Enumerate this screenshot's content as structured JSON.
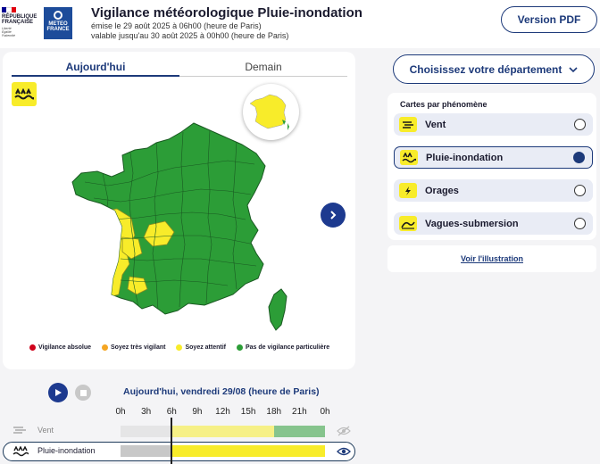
{
  "header": {
    "republic_lines": [
      "RÉPUBLIQUE",
      "FRANÇAISE"
    ],
    "motto_lines": [
      "Liberté",
      "Égalité",
      "Fraternité"
    ],
    "meteo_lines": [
      "METEO",
      "FRANCE"
    ],
    "title": "Vigilance météorologique Pluie-inondation",
    "issued": "émise le 29 août 2025 à 06h00 (heure de Paris)",
    "valid": "valable jusqu'au 30 août 2025 à 00h00 (heure de Paris)",
    "pdf_button": "Version PDF",
    "colors": {
      "flag_blue": "#000091",
      "flag_red": "#e1000f",
      "meteo_blue": "#1d4c9a"
    }
  },
  "map": {
    "tabs": [
      {
        "label": "Aujourd'hui",
        "active": true
      },
      {
        "label": "Demain",
        "active": false
      }
    ],
    "colors": {
      "green": "#2c9d37",
      "yellow": "#f8ec2a",
      "orange": "#f5a623",
      "red": "#d0021b"
    },
    "legend": [
      {
        "label": "Vigilance absolue",
        "color": "#d0021b"
      },
      {
        "label": "Soyez très vigilant",
        "color": "#f5a623"
      },
      {
        "label": "Soyez attentif",
        "color": "#f8ec2a"
      },
      {
        "label": "Pas de vigilance particulière",
        "color": "#2c9d37"
      }
    ]
  },
  "sidebar": {
    "department_button": "Choisissez votre département",
    "phenomena_label": "Cartes par phénomène",
    "phenomena": [
      {
        "label": "Vent",
        "icon": "wind-icon",
        "selected": false
      },
      {
        "label": "Pluie-inondation",
        "icon": "rain-flood-icon",
        "selected": true
      },
      {
        "label": "Orages",
        "icon": "storm-icon",
        "selected": false
      },
      {
        "label": "Vagues-submersion",
        "icon": "waves-icon",
        "selected": false
      }
    ],
    "illustration_link": "Voir l'illustration"
  },
  "timeline": {
    "date_label": "Aujourd'hui, vendredi 29/08 (heure de Paris)",
    "hours": [
      "0h",
      "3h",
      "6h",
      "9h",
      "12h",
      "15h",
      "18h",
      "21h",
      "0h"
    ],
    "current_hour": 6,
    "rows": [
      {
        "label": "Vent",
        "selected": false,
        "segments": [
          {
            "from": 0,
            "to": 6,
            "color": "#d9d9d9"
          },
          {
            "from": 6,
            "to": 18,
            "color": "#f8ec2a"
          },
          {
            "from": 18,
            "to": 24,
            "color": "#2c9d37"
          }
        ]
      },
      {
        "label": "Pluie-inondation",
        "selected": true,
        "segments": [
          {
            "from": 0,
            "to": 6,
            "color": "#c8c8c8"
          },
          {
            "from": 6,
            "to": 24,
            "color": "#f8ec2a"
          }
        ]
      }
    ]
  }
}
